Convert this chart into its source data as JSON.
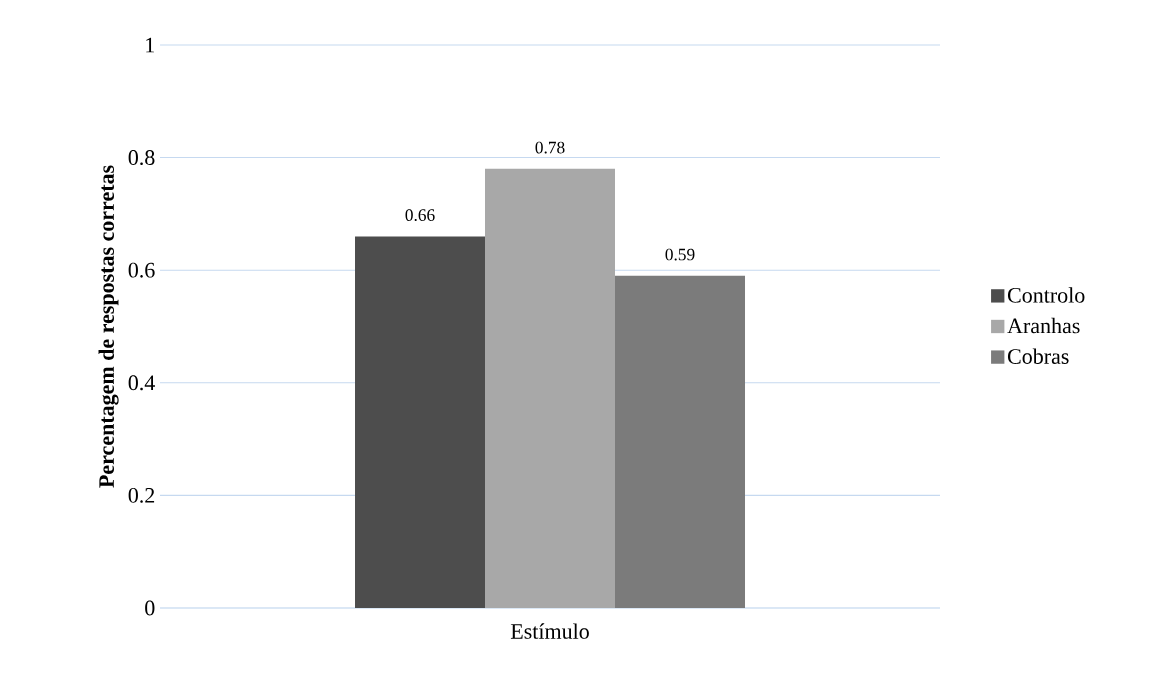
{
  "chart_data": {
    "type": "bar",
    "ylabel": "Percentagem de respostas corretas",
    "categories": [
      "Estímulo"
    ],
    "series": [
      {
        "name": "Controlo",
        "color": "#4d4d4d",
        "values": [
          0.66
        ]
      },
      {
        "name": "Aranhas",
        "color": "#a8a8a8",
        "values": [
          0.78
        ]
      },
      {
        "name": "Cobras",
        "color": "#7b7b7b",
        "values": [
          0.59
        ]
      }
    ],
    "ylim": [
      0,
      1
    ],
    "yticks": [
      0,
      0.2,
      0.4,
      0.6,
      0.8,
      1
    ],
    "grid": "y",
    "legend": "right",
    "data_labels": true
  }
}
